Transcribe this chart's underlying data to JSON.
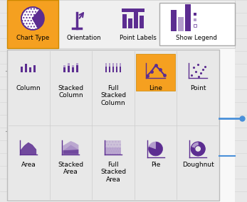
{
  "bg_color": "#e8e8e8",
  "toolbar_bg": "#f0f0f0",
  "orange": "#f5a020",
  "purple": "#5c2d91",
  "light_purple": "#b39dcc",
  "white": "#ffffff",
  "panel_bg": "#e8e8e8",
  "panel_border": "#bbbbbb",
  "line_color": "#4a90d9",
  "toolbar_items": [
    "Chart Type",
    "Orientation",
    "Point Labels",
    "Show Legend"
  ],
  "chart_items_row1": [
    "Column",
    "Stacked\nColumn",
    "Full\nStacked\nColumn",
    "Line",
    "Point"
  ],
  "chart_items_row2": [
    "Area",
    "Stacked\nArea",
    "Full\nStacked\nArea",
    "Pie",
    "Doughnut"
  ],
  "figw": 3.47,
  "figh": 2.85,
  "dpi": 100
}
